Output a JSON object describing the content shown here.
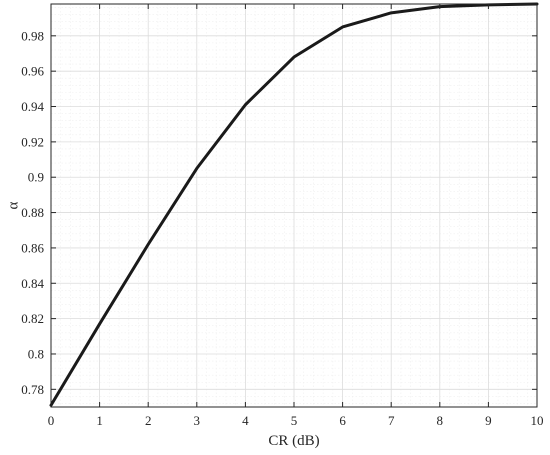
{
  "chart_data": {
    "type": "line",
    "xlabel": "CR (dB)",
    "ylabel": "α",
    "xlim": [
      0,
      10
    ],
    "ylim": [
      0.77,
      0.998
    ],
    "xticks": [
      0,
      1,
      2,
      3,
      4,
      5,
      6,
      7,
      8,
      9,
      10
    ],
    "yticks": [
      0.78,
      0.8,
      0.82,
      0.84,
      0.86,
      0.88,
      0.9,
      0.92,
      0.94,
      0.96,
      0.98
    ],
    "xtick_labels": [
      "0",
      "1",
      "2",
      "3",
      "4",
      "5",
      "6",
      "7",
      "8",
      "9",
      "10"
    ],
    "ytick_labels": [
      "0.78",
      "0.8",
      "0.82",
      "0.84",
      "0.86",
      "0.88",
      "0.9",
      "0.92",
      "0.94",
      "0.96",
      "0.98"
    ],
    "grid": true,
    "minor_grid": true,
    "series": [
      {
        "color": "#1a1a1a",
        "x": [
          0,
          1,
          2,
          3,
          4,
          5,
          6,
          7,
          8,
          9,
          10
        ],
        "y": [
          0.771,
          0.817,
          0.862,
          0.905,
          0.941,
          0.968,
          0.985,
          0.993,
          0.9965,
          0.9975,
          0.998
        ]
      }
    ]
  }
}
